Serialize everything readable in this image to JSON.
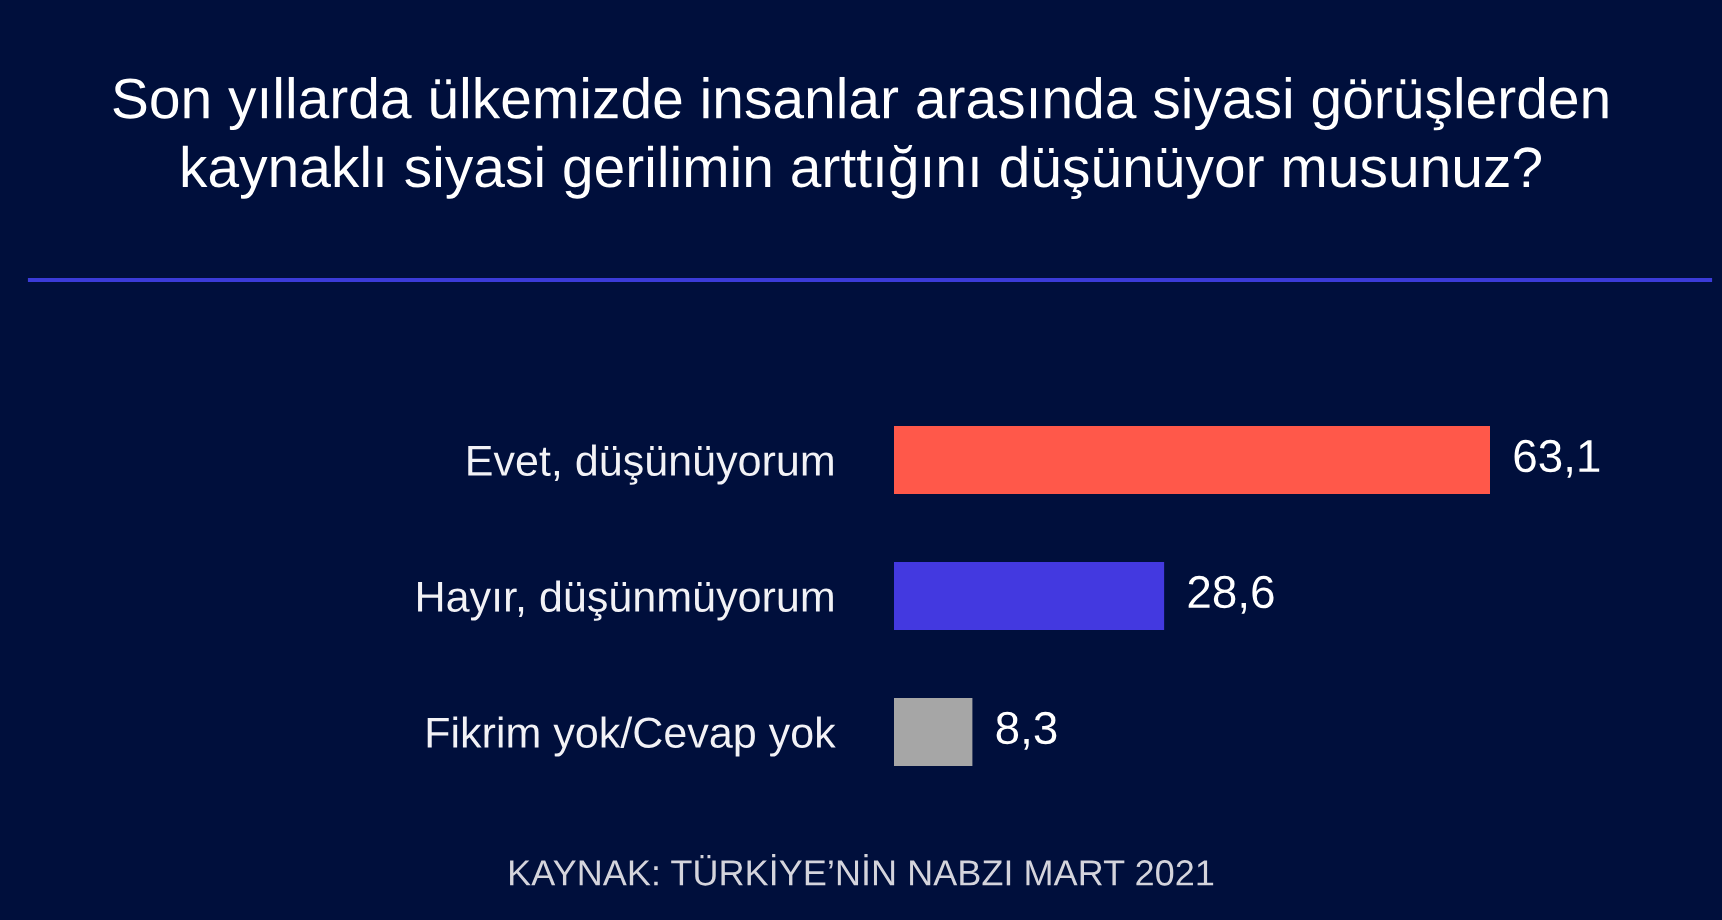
{
  "chart_data": {
    "type": "bar",
    "orientation": "horizontal",
    "title": "Son yıllarda ülkemizde insanlar arasında siyasi görüşlerden\nkaynaklı siyasi gerilimin arttığını düşünüyor musunuz?",
    "categories": [
      "Evet, düşünüyorum",
      "Hayır, düşünmüyorum",
      "Fikrim yok/Cevap yok"
    ],
    "values": [
      63.1,
      28.6,
      8.3
    ],
    "colors": [
      "#ff584a",
      "#4339e0",
      "#a6a6a6"
    ],
    "value_labels": [
      "63,1",
      "28,6",
      "8,3"
    ],
    "tick_labels": "y",
    "annotations": [
      "KAYNAK: TÜRKİYE’NİN NABZI MART 2021"
    ]
  }
}
